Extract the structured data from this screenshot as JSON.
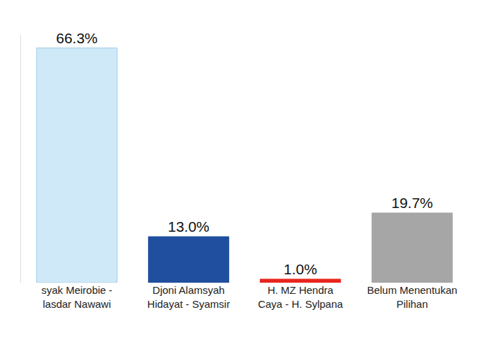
{
  "chart_data": {
    "type": "bar",
    "categories": [
      "syak Meirobie -\nlasdar Nawawi",
      "Djoni Alamsyah\nHidayat - Syamsir",
      "H. MZ Hendra\nCaya - H. Sylpana",
      "Belum Menentukan\nPilihan"
    ],
    "values": [
      66.3,
      13.0,
      1.0,
      19.7
    ],
    "value_labels": [
      "66.3%",
      "13.0%",
      "1.0%",
      "19.7%"
    ],
    "colors": [
      "#cfe9f8",
      "#1f4f9e",
      "#e8261e",
      "#a6a6a6"
    ],
    "ylim": [
      0,
      70
    ],
    "data_labels": true,
    "tick_labels": "x",
    "grid": false
  }
}
